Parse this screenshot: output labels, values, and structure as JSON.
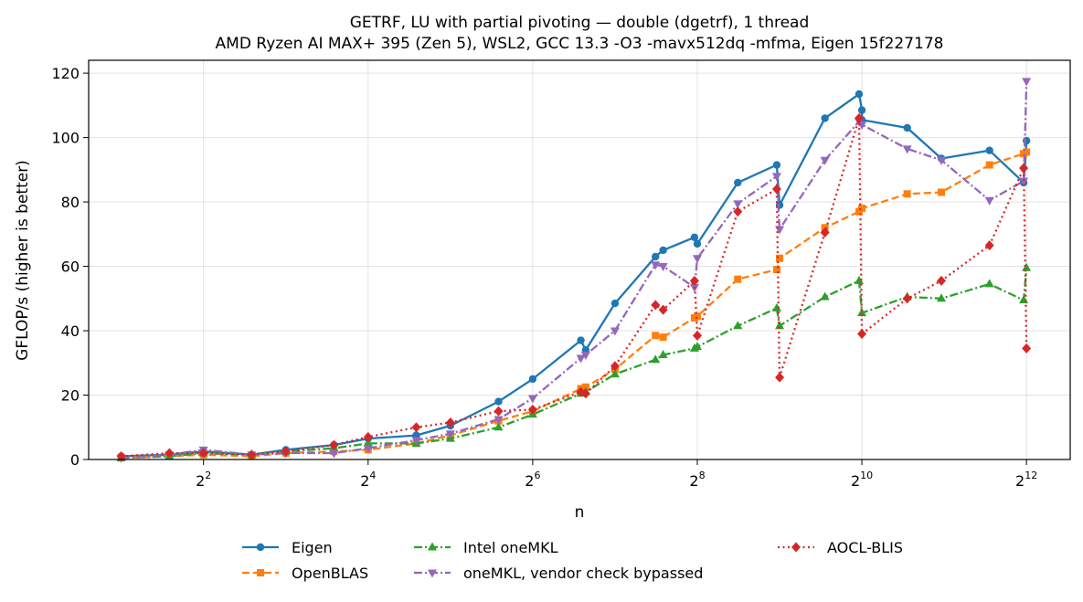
{
  "chart_data": {
    "type": "line",
    "title": "GETRF, LU with partial pivoting — double (dgetrf), 1 thread",
    "subtitle": "AMD Ryzen AI MAX+ 395 (Zen 5), WSL2, GCC 13.3 -O3 -mavx512dq -mfma, Eigen 15f227178",
    "xlabel": "n",
    "ylabel": "GFLOP/s (higher is better)",
    "xscale": "log2",
    "xlim": [
      1.52,
      5920
    ],
    "ylim": [
      0,
      124
    ],
    "x_ticks": [
      {
        "base": "2",
        "exp": "2",
        "value": 4
      },
      {
        "base": "2",
        "exp": "4",
        "value": 16
      },
      {
        "base": "2",
        "exp": "6",
        "value": 64
      },
      {
        "base": "2",
        "exp": "8",
        "value": 256
      },
      {
        "base": "2",
        "exp": "10",
        "value": 1024
      },
      {
        "base": "2",
        "exp": "12",
        "value": 4096
      }
    ],
    "y_ticks": [
      "0",
      "20",
      "40",
      "60",
      "80",
      "100",
      "120"
    ],
    "grid": true,
    "legend_position": "bottom",
    "series": [
      {
        "name": "Eigen",
        "color": "#1f77b4",
        "marker": "circle",
        "dash": "solid",
        "points": [
          [
            2,
            1
          ],
          [
            3,
            1.5
          ],
          [
            4,
            2.5
          ],
          [
            6,
            1.5
          ],
          [
            8,
            3
          ],
          [
            12,
            4.5
          ],
          [
            16,
            6.5
          ],
          [
            24,
            7.5
          ],
          [
            32,
            10.5
          ],
          [
            48,
            18
          ],
          [
            64,
            25
          ],
          [
            96,
            37
          ],
          [
            100,
            34
          ],
          [
            128,
            48.5
          ],
          [
            180,
            63
          ],
          [
            192,
            65
          ],
          [
            250,
            69
          ],
          [
            256,
            67
          ],
          [
            360,
            86
          ],
          [
            500,
            91.5
          ],
          [
            512,
            79
          ],
          [
            750,
            106
          ],
          [
            1000,
            113.5
          ],
          [
            1024,
            108.5
          ],
          [
            1024,
            105.5
          ],
          [
            1500,
            103
          ],
          [
            2000,
            93.5
          ],
          [
            3000,
            96
          ],
          [
            4000,
            86
          ],
          [
            4096,
            99
          ]
        ]
      },
      {
        "name": "OpenBLAS",
        "color": "#ff7f0e",
        "marker": "square",
        "dash": "dashed",
        "points": [
          [
            2,
            0.5
          ],
          [
            3,
            1
          ],
          [
            4,
            1.5
          ],
          [
            6,
            1
          ],
          [
            8,
            2
          ],
          [
            12,
            2.5
          ],
          [
            16,
            3
          ],
          [
            24,
            5
          ],
          [
            32,
            7.5
          ],
          [
            48,
            12
          ],
          [
            64,
            15
          ],
          [
            96,
            22
          ],
          [
            100,
            22.5
          ],
          [
            128,
            28
          ],
          [
            180,
            38.5
          ],
          [
            192,
            38
          ],
          [
            250,
            44
          ],
          [
            256,
            44.5
          ],
          [
            360,
            56
          ],
          [
            500,
            59
          ],
          [
            512,
            62.5
          ],
          [
            750,
            72
          ],
          [
            1000,
            77
          ],
          [
            1024,
            78
          ],
          [
            1500,
            82.5
          ],
          [
            2000,
            83
          ],
          [
            3000,
            91.5
          ],
          [
            4000,
            95
          ],
          [
            4096,
            95.5
          ]
        ]
      },
      {
        "name": "Intel oneMKL",
        "color": "#2ca02c",
        "marker": "triangle-up",
        "dash": "dashdot",
        "points": [
          [
            2,
            0.5
          ],
          [
            3,
            1
          ],
          [
            4,
            2
          ],
          [
            6,
            1.5
          ],
          [
            8,
            2.5
          ],
          [
            12,
            3.5
          ],
          [
            16,
            5
          ],
          [
            24,
            5
          ],
          [
            32,
            6.5
          ],
          [
            48,
            10
          ],
          [
            64,
            14
          ],
          [
            96,
            20.5
          ],
          [
            100,
            21
          ],
          [
            128,
            26.5
          ],
          [
            180,
            31
          ],
          [
            192,
            32.5
          ],
          [
            250,
            34.5
          ],
          [
            256,
            35
          ],
          [
            360,
            41.5
          ],
          [
            500,
            47
          ],
          [
            512,
            41.5
          ],
          [
            750,
            50.5
          ],
          [
            1000,
            55.5
          ],
          [
            1024,
            45.5
          ],
          [
            1500,
            50.5
          ],
          [
            2000,
            50
          ],
          [
            3000,
            54.5
          ],
          [
            4000,
            49.5
          ],
          [
            4096,
            59.5
          ]
        ]
      },
      {
        "name": "oneMKL, vendor check bypassed",
        "color": "#9467bd",
        "marker": "triangle-down",
        "dash": "dashdot",
        "points": [
          [
            2,
            0.5
          ],
          [
            3,
            1.5
          ],
          [
            4,
            3
          ],
          [
            6,
            1.5
          ],
          [
            8,
            2
          ],
          [
            12,
            2
          ],
          [
            16,
            3.5
          ],
          [
            24,
            6
          ],
          [
            32,
            8
          ],
          [
            48,
            12.5
          ],
          [
            64,
            19
          ],
          [
            96,
            31.5
          ],
          [
            100,
            32.5
          ],
          [
            128,
            40
          ],
          [
            180,
            60.5
          ],
          [
            192,
            60
          ],
          [
            250,
            53.5
          ],
          [
            256,
            62.5
          ],
          [
            360,
            79.5
          ],
          [
            500,
            88
          ],
          [
            512,
            71.5
          ],
          [
            750,
            93
          ],
          [
            1000,
            105
          ],
          [
            1024,
            104
          ],
          [
            1500,
            96.5
          ],
          [
            2000,
            93
          ],
          [
            3000,
            80.5
          ],
          [
            4000,
            86.5
          ],
          [
            4096,
            117.5
          ]
        ]
      },
      {
        "name": "AOCL-BLIS",
        "color": "#d62728",
        "marker": "diamond",
        "dash": "dotted",
        "points": [
          [
            2,
            1
          ],
          [
            3,
            2
          ],
          [
            4,
            2
          ],
          [
            6,
            1.5
          ],
          [
            8,
            2.5
          ],
          [
            12,
            4.5
          ],
          [
            16,
            7
          ],
          [
            24,
            10
          ],
          [
            32,
            11.5
          ],
          [
            48,
            15
          ],
          [
            64,
            15.5
          ],
          [
            96,
            21
          ],
          [
            100,
            20.5
          ],
          [
            128,
            29
          ],
          [
            180,
            48
          ],
          [
            192,
            46.5
          ],
          [
            250,
            55.5
          ],
          [
            256,
            38.5
          ],
          [
            360,
            77
          ],
          [
            500,
            84
          ],
          [
            512,
            25.5
          ],
          [
            750,
            70.5
          ],
          [
            1000,
            106
          ],
          [
            1024,
            39
          ],
          [
            1500,
            50
          ],
          [
            2000,
            55.5
          ],
          [
            3000,
            66.5
          ],
          [
            4000,
            90.5
          ],
          [
            4096,
            34.5
          ]
        ]
      }
    ]
  }
}
